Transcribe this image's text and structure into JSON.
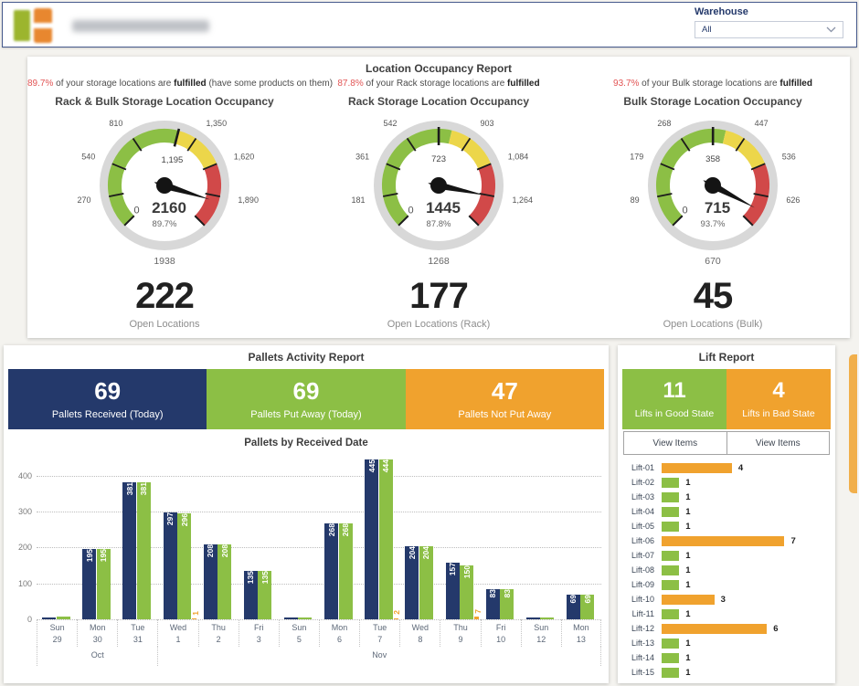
{
  "header": {
    "warehouse_label": "Warehouse",
    "warehouse_value": "All"
  },
  "occupancy": {
    "title": "Location Occupancy Report",
    "panels": [
      {
        "note": {
          "pct": "89.7%",
          "text": " of your storage locations are ",
          "bold": "fulfilled",
          "suffix": " (have some products on them)"
        },
        "title": "Rack & Bulk Storage Location Occupancy",
        "open": {
          "value": "222",
          "label": "Open Locations"
        }
      },
      {
        "note": {
          "pct": "87.8%",
          "text": " of your Rack storage locations are ",
          "bold": "fulfilled",
          "suffix": ""
        },
        "title": "Rack Storage Location Occupancy",
        "open": {
          "value": "177",
          "label": "Open Locations (Rack)"
        }
      },
      {
        "note": {
          "pct": "93.7%",
          "text": " of your Bulk storage locations are ",
          "bold": "fulfilled",
          "suffix": ""
        },
        "title": "Bulk Storage Location Occupancy",
        "open": {
          "value": "45",
          "label": "Open Locations (Bulk)"
        }
      }
    ]
  },
  "pallets": {
    "title": "Pallets Activity Report",
    "cards": [
      {
        "value": "69",
        "label": "Pallets Received (Today)",
        "color": "#24396b"
      },
      {
        "value": "69",
        "label": "Pallets Put Away (Today)",
        "color": "#8cbf45"
      },
      {
        "value": "47",
        "label": "Pallets Not Put Away",
        "color": "#f0a22e"
      }
    ],
    "chart_title": "Pallets by Received Date"
  },
  "lift": {
    "title": "Lift Report",
    "cards": [
      {
        "value": "11",
        "label": "Lifts in Good State",
        "color": "#8cbf45"
      },
      {
        "value": "4",
        "label": "Lifts in Bad State",
        "color": "#f0a22e"
      }
    ],
    "buttons": [
      {
        "label": "View Items"
      },
      {
        "label": "View Items"
      }
    ]
  },
  "chart_data": [
    {
      "type": "gauge",
      "title": "Rack & Bulk Storage Location Occupancy",
      "min": 0,
      "max": 2160,
      "value": 1938,
      "percent": 89.7,
      "min_label": "0",
      "center_label": "2160",
      "percent_label": "89.7%",
      "bottom_label": "1938",
      "target": {
        "value": 1195,
        "label": "1,195"
      },
      "ticks": [
        {
          "v": 270,
          "label": "270"
        },
        {
          "v": 540,
          "label": "540"
        },
        {
          "v": 810,
          "label": "810"
        },
        {
          "v": 1350,
          "label": "1,350"
        },
        {
          "v": 1620,
          "label": "1,620"
        },
        {
          "v": 1890,
          "label": "1,890"
        }
      ],
      "zones": [
        {
          "from": 0,
          "to": 1195,
          "color": "#8cbf45"
        },
        {
          "from": 1195,
          "to": 1620,
          "color": "#ecd64a"
        },
        {
          "from": 1620,
          "to": 2160,
          "color": "#d14949"
        }
      ]
    },
    {
      "type": "gauge",
      "title": "Rack Storage Location Occupancy",
      "min": 0,
      "max": 1445,
      "value": 1268,
      "percent": 87.8,
      "min_label": "0",
      "center_label": "1445",
      "percent_label": "87.8%",
      "bottom_label": "1268",
      "target": {
        "value": 723,
        "label": "723"
      },
      "ticks": [
        {
          "v": 181,
          "label": "181"
        },
        {
          "v": 361,
          "label": "361"
        },
        {
          "v": 542,
          "label": "542"
        },
        {
          "v": 903,
          "label": "903"
        },
        {
          "v": 1084,
          "label": "1,084"
        },
        {
          "v": 1264,
          "label": "1,264"
        }
      ],
      "zones": [
        {
          "from": 0,
          "to": 795,
          "color": "#8cbf45"
        },
        {
          "from": 795,
          "to": 1084,
          "color": "#ecd64a"
        },
        {
          "from": 1084,
          "to": 1445,
          "color": "#d14949"
        }
      ]
    },
    {
      "type": "gauge",
      "title": "Bulk Storage Location Occupancy",
      "min": 0,
      "max": 715,
      "value": 670,
      "percent": 93.7,
      "min_label": "0",
      "center_label": "715",
      "percent_label": "93.7%",
      "bottom_label": "670",
      "target": {
        "value": 358,
        "label": "358"
      },
      "ticks": [
        {
          "v": 89,
          "label": "89"
        },
        {
          "v": 179,
          "label": "179"
        },
        {
          "v": 268,
          "label": "268"
        },
        {
          "v": 447,
          "label": "447"
        },
        {
          "v": 536,
          "label": "536"
        },
        {
          "v": 626,
          "label": "626"
        }
      ],
      "zones": [
        {
          "from": 0,
          "to": 393,
          "color": "#8cbf45"
        },
        {
          "from": 393,
          "to": 536,
          "color": "#ecd64a"
        },
        {
          "from": 536,
          "to": 715,
          "color": "#d14949"
        }
      ]
    },
    {
      "type": "bar",
      "title": "Pallets by Received Date",
      "categories": [
        {
          "day": "Sun",
          "date": "29"
        },
        {
          "day": "Mon",
          "date": "30"
        },
        {
          "day": "Tue",
          "date": "31"
        },
        {
          "day": "Wed",
          "date": "1"
        },
        {
          "day": "Thu",
          "date": "2"
        },
        {
          "day": "Fri",
          "date": "3"
        },
        {
          "day": "Sun",
          "date": "5"
        },
        {
          "day": "Mon",
          "date": "6"
        },
        {
          "day": "Tue",
          "date": "7"
        },
        {
          "day": "Wed",
          "date": "8"
        },
        {
          "day": "Thu",
          "date": "9"
        },
        {
          "day": "Fri",
          "date": "10"
        },
        {
          "day": "Sun",
          "date": "12"
        },
        {
          "day": "Mon",
          "date": "13"
        }
      ],
      "month_groups": [
        {
          "label": "Oct",
          "span": 3
        },
        {
          "label": "Nov",
          "span": 11
        }
      ],
      "series": [
        {
          "name": "Pallets Received",
          "color": "#24396b",
          "values": [
            5,
            195,
            381,
            297,
            208,
            135,
            6,
            268,
            445,
            204,
            157,
            83,
            4,
            69
          ]
        },
        {
          "name": "Pallets Put Away",
          "color": "#8cbf45",
          "values": [
            8,
            195,
            381,
            296,
            208,
            135,
            6,
            268,
            444,
            204,
            150,
            83,
            4,
            69
          ]
        },
        {
          "name": "Pallets Not Put Away",
          "color": "#f0a22e",
          "values": [
            0,
            0,
            0,
            1,
            0,
            0,
            0,
            0,
            2,
            0,
            7,
            0,
            0,
            0
          ]
        }
      ],
      "ylim": [
        0,
        478
      ],
      "yticks": [
        0,
        100,
        200,
        300,
        400
      ],
      "grid": "dotted horizontal",
      "label_threshold": 45
    },
    {
      "type": "bar",
      "orientation": "horizontal",
      "title": "Lift Report",
      "categories": [
        "Lift-01",
        "Lift-02",
        "Lift-03",
        "Lift-04",
        "Lift-05",
        "Lift-06",
        "Lift-07",
        "Lift-08",
        "Lift-09",
        "Lift-10",
        "Lift-11",
        "Lift-12",
        "Lift-13",
        "Lift-14",
        "Lift-15"
      ],
      "values": [
        4,
        1,
        1,
        1,
        1,
        7,
        1,
        1,
        1,
        3,
        1,
        6,
        1,
        1,
        1
      ],
      "states": [
        "bad",
        "good",
        "good",
        "good",
        "good",
        "bad",
        "good",
        "good",
        "good",
        "bad",
        "good",
        "bad",
        "good",
        "good",
        "good"
      ],
      "state_colors": {
        "good": "#8cbf45",
        "bad": "#f0a22e"
      },
      "xlim": [
        0,
        7.6
      ]
    }
  ]
}
